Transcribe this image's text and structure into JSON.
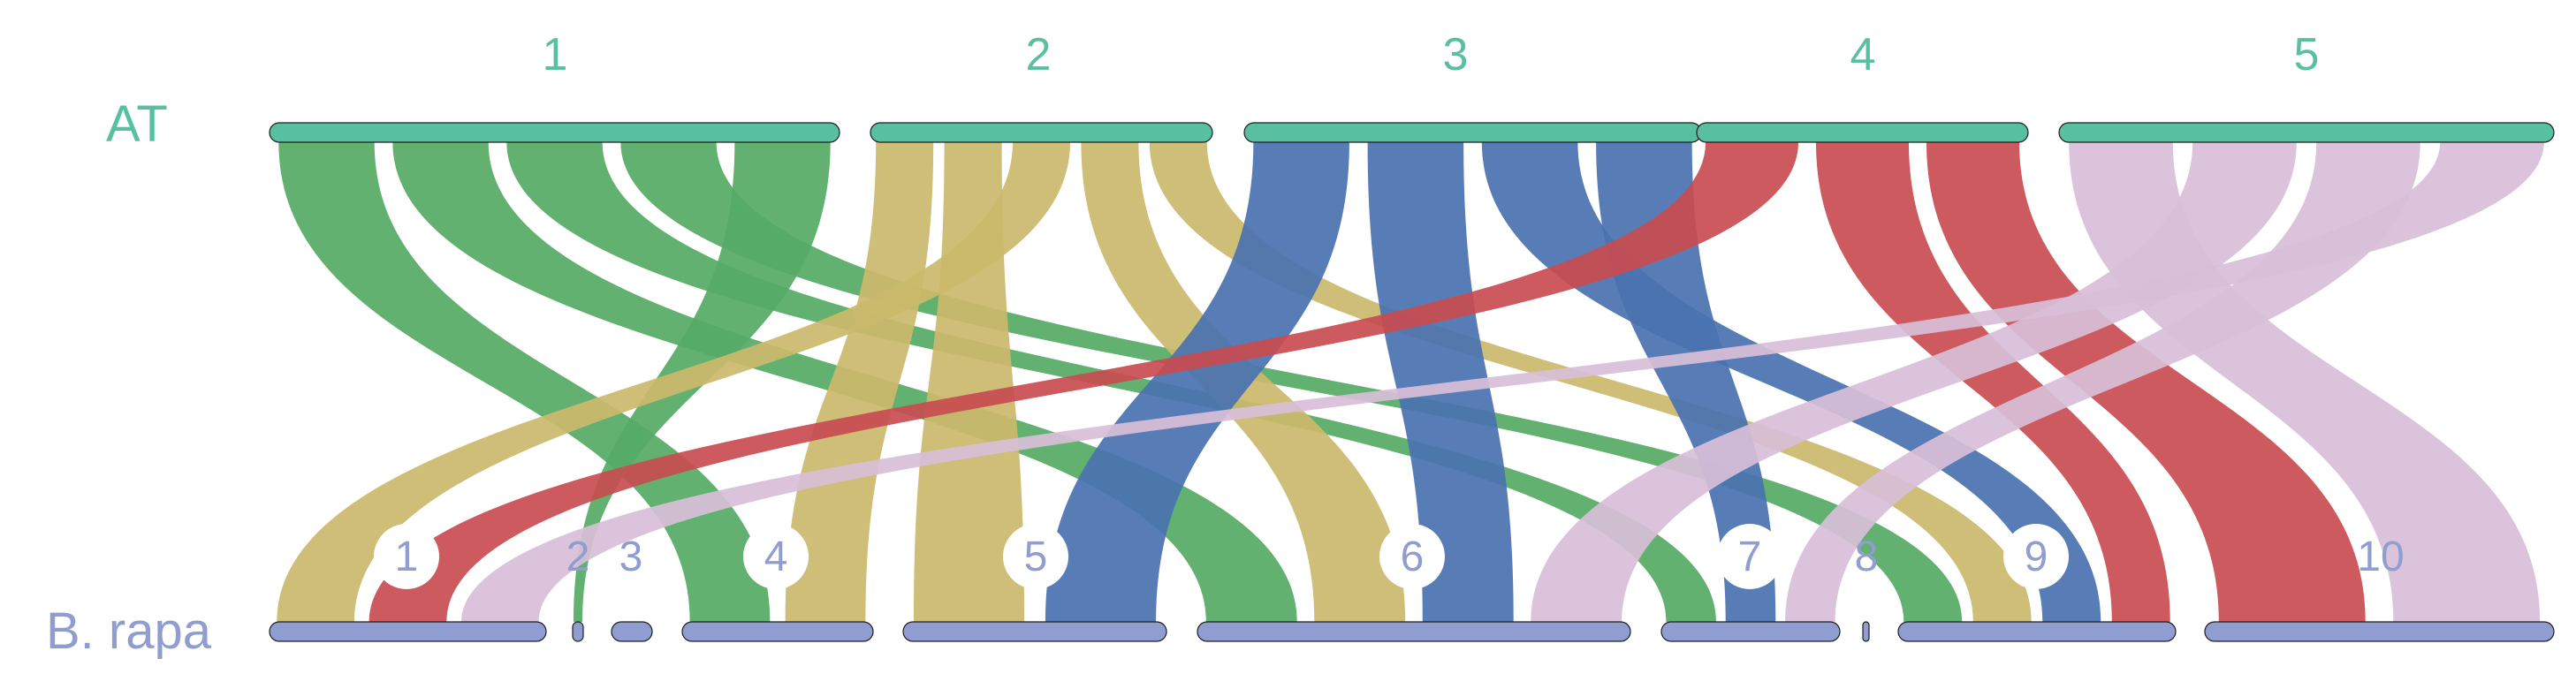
{
  "genomes": {
    "top": {
      "label": "AT",
      "color": "#58c0a0"
    },
    "bottom": {
      "label": "B. rapa",
      "color": "#8f9dd0"
    }
  },
  "top_chromosomes": [
    {
      "id": "1",
      "color": "#55aa65"
    },
    {
      "id": "2",
      "color": "#cbb86b"
    },
    {
      "id": "3",
      "color": "#4a72b0"
    },
    {
      "id": "4",
      "color": "#c84c50"
    },
    {
      "id": "5",
      "color": "#d8bfd8"
    }
  ],
  "bottom_chromosomes": [
    "1",
    "2",
    "3",
    "4",
    "5",
    "6",
    "7",
    "8",
    "9",
    "10"
  ],
  "links": [
    {
      "from": "1",
      "to": "4"
    },
    {
      "from": "1",
      "to": "6"
    },
    {
      "from": "1",
      "to": "7"
    },
    {
      "from": "1",
      "to": "9"
    },
    {
      "from": "1",
      "to": "2"
    },
    {
      "from": "2",
      "to": "4"
    },
    {
      "from": "2",
      "to": "5"
    },
    {
      "from": "2",
      "to": "1"
    },
    {
      "from": "2",
      "to": "6"
    },
    {
      "from": "2",
      "to": "9"
    },
    {
      "from": "3",
      "to": "5"
    },
    {
      "from": "3",
      "to": "6"
    },
    {
      "from": "3",
      "to": "9"
    },
    {
      "from": "3",
      "to": "7"
    },
    {
      "from": "4",
      "to": "1"
    },
    {
      "from": "4",
      "to": "9"
    },
    {
      "from": "4",
      "to": "10"
    },
    {
      "from": "5",
      "to": "10"
    },
    {
      "from": "5",
      "to": "6"
    },
    {
      "from": "5",
      "to": "7"
    },
    {
      "from": "5",
      "to": "1"
    }
  ]
}
